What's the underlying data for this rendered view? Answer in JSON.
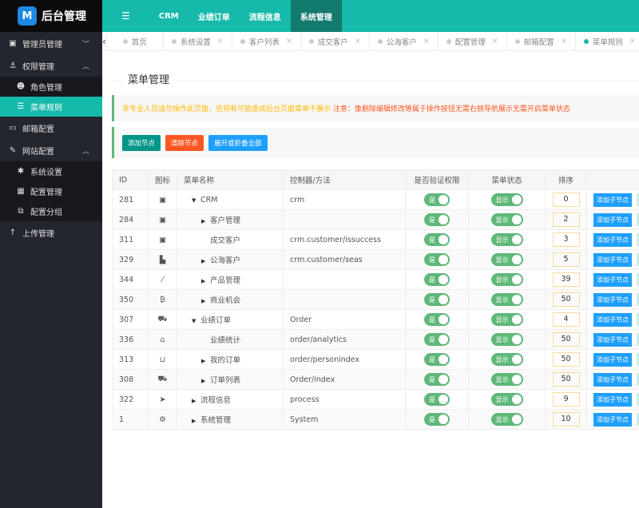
{
  "logo": {
    "text": "后台管理",
    "letter": "M"
  },
  "topnav": [
    {
      "label": "CRM"
    },
    {
      "label": "业绩订单"
    },
    {
      "label": "流程信息"
    },
    {
      "label": "系统管理",
      "active": true
    }
  ],
  "sidebar": [
    {
      "label": "管理员管理",
      "icon": "id-card-icon",
      "arrow": "chevron-down"
    },
    {
      "label": "权限管理",
      "icon": "anchor-icon",
      "arrow": "chevron-up",
      "children": [
        {
          "label": "角色管理",
          "icon": "users-icon"
        },
        {
          "label": "菜单规则",
          "icon": "list-icon",
          "active": true
        }
      ]
    },
    {
      "label": "邮箱配置",
      "icon": "mail-icon"
    },
    {
      "label": "网站配置",
      "icon": "site-icon",
      "arrow": "chevron-up",
      "children": [
        {
          "label": "系统设置",
          "icon": "asterisk-icon"
        },
        {
          "label": "配置管理",
          "icon": "config-icon"
        },
        {
          "label": "配置分组",
          "icon": "group-icon"
        }
      ]
    },
    {
      "label": "上传管理",
      "icon": "upload-icon"
    }
  ],
  "tabs": [
    {
      "label": "首页"
    },
    {
      "label": "系统设置"
    },
    {
      "label": "客户列表"
    },
    {
      "label": "成交客户"
    },
    {
      "label": "公海客户"
    },
    {
      "label": "配置管理"
    },
    {
      "label": "邮箱配置"
    },
    {
      "label": "菜单规则",
      "active": true
    }
  ],
  "page_title": "菜单管理",
  "notice": {
    "part1": "非专业人员请勿操作此页面，否则有可能造成后台页面菜单不展示. ",
    "part2": "注意：像删除编辑修改等属于操作按钮无需右侧导航展示无需开启菜单状态"
  },
  "toolbar": {
    "add": "添加节点",
    "clear": "清除节点",
    "toggle": "展开或折叠全部"
  },
  "colors": {
    "primary": "#16baaa",
    "green": "#5fb878",
    "orange": "#ff5722",
    "blue": "#1e9fff",
    "teal": "#009688"
  },
  "table": {
    "headers": [
      "ID",
      "图标",
      "菜单名称",
      "控制器/方法",
      "是否验证权限",
      "菜单状态",
      "排序",
      ""
    ],
    "auth_label": "是",
    "status_label": "显示",
    "add_child": "添加子节点",
    "rows": [
      {
        "id": "281",
        "icon": "id-card-icon",
        "name": "CRM",
        "level": 0,
        "toggle": "expanded",
        "ctrl": "crm",
        "order": "0"
      },
      {
        "id": "284",
        "icon": "id-card-icon",
        "name": "客户管理",
        "level": 1,
        "toggle": "collapsed",
        "ctrl": "",
        "order": "2"
      },
      {
        "id": "311",
        "icon": "id-card-icon",
        "name": "成交客户",
        "level": 1,
        "toggle": "",
        "ctrl": "crm.customer/issuccess",
        "order": "3"
      },
      {
        "id": "329",
        "icon": "industry-icon",
        "name": "公海客户",
        "level": 1,
        "toggle": "collapsed",
        "ctrl": "crm.customer/seas",
        "order": "5"
      },
      {
        "id": "344",
        "icon": "brush-icon",
        "name": "产品管理",
        "level": 1,
        "toggle": "collapsed",
        "ctrl": "",
        "order": "39"
      },
      {
        "id": "350",
        "icon": "bitcoin-icon",
        "name": "商业机会",
        "level": 1,
        "toggle": "collapsed",
        "ctrl": "",
        "order": "50"
      },
      {
        "id": "307",
        "icon": "cart-icon",
        "name": "业绩订单",
        "level": 0,
        "toggle": "expanded",
        "ctrl": "Order",
        "order": "4"
      },
      {
        "id": "336",
        "icon": "bank-icon",
        "name": "业绩统计",
        "level": 1,
        "toggle": "",
        "ctrl": "order/analytics",
        "order": "50"
      },
      {
        "id": "313",
        "icon": "basket-icon",
        "name": "我的订单",
        "level": 1,
        "toggle": "collapsed",
        "ctrl": "order/personindex",
        "order": "50"
      },
      {
        "id": "308",
        "icon": "cart-icon",
        "name": "订单列表",
        "level": 1,
        "toggle": "collapsed",
        "ctrl": "Order/index",
        "order": "50"
      },
      {
        "id": "322",
        "icon": "paper-plane-icon",
        "name": "流程信息",
        "level": 0,
        "toggle": "collapsed",
        "ctrl": "process",
        "order": "9"
      },
      {
        "id": "1",
        "icon": "cogs-icon",
        "name": "系统管理",
        "level": 0,
        "toggle": "collapsed",
        "ctrl": "System",
        "order": "10"
      }
    ]
  }
}
